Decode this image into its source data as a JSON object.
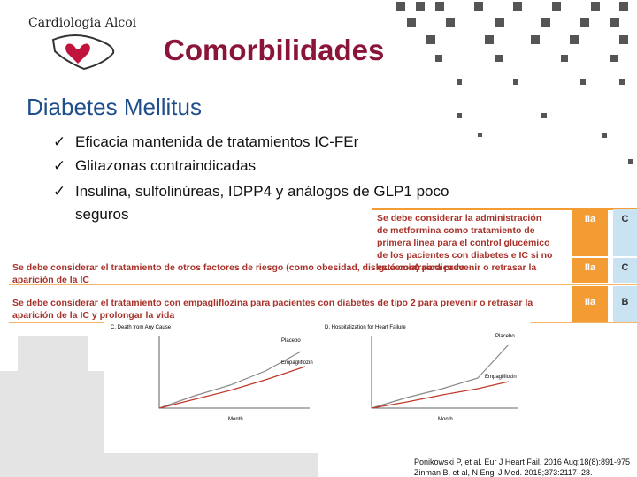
{
  "logo": "Cardiologia Alcoi",
  "title": "Comorbilidades",
  "section": "Diabetes Mellitus",
  "bullets": [
    "Eficacia mantenida de tratamientos IC-FEr",
    "Glitazonas contraindicadas",
    "Insulina, sulfolinúreas, IDPP4 y análogos de GLP1 poco seguros"
  ],
  "table": {
    "rows": [
      {
        "text": "Se debe considerar la administración de metformina como tratamiento de primera línea para el control glucémico de los pacientes con diabetes e IC si no está contraindicado",
        "class": "IIa",
        "level": "C"
      },
      {
        "text": "Se debe considerar el tratamiento de otros factores de riesgo (como obesidad, dislgucemia) para prevenir o retrasar la aparición de la IC",
        "class": "IIa",
        "level": "C"
      },
      {
        "text": "Se debe considerar el tratamiento con empagliflozina para pacientes con diabetes de tipo 2 para prevenir o retrasar la aparición de la IC y prolongar la vida",
        "class": "IIa",
        "level": "B"
      }
    ]
  },
  "figures": [
    {
      "title": "C. Death from Any Cause",
      "xlabel": "Month",
      "labels": [
        "Placebo",
        "Empagliflozin"
      ]
    },
    {
      "title": "D. Hospitalization for Heart Failure",
      "xlabel": "Month",
      "labels": [
        "Placebo",
        "Empagliflozin"
      ]
    }
  ],
  "references": [
    "Ponikowski P, et al. Eur J Heart Fail. 2016 Aug;18(8):891-975",
    "Zinman B, et al, N Engl J Med. 2015;373:2117–28."
  ]
}
